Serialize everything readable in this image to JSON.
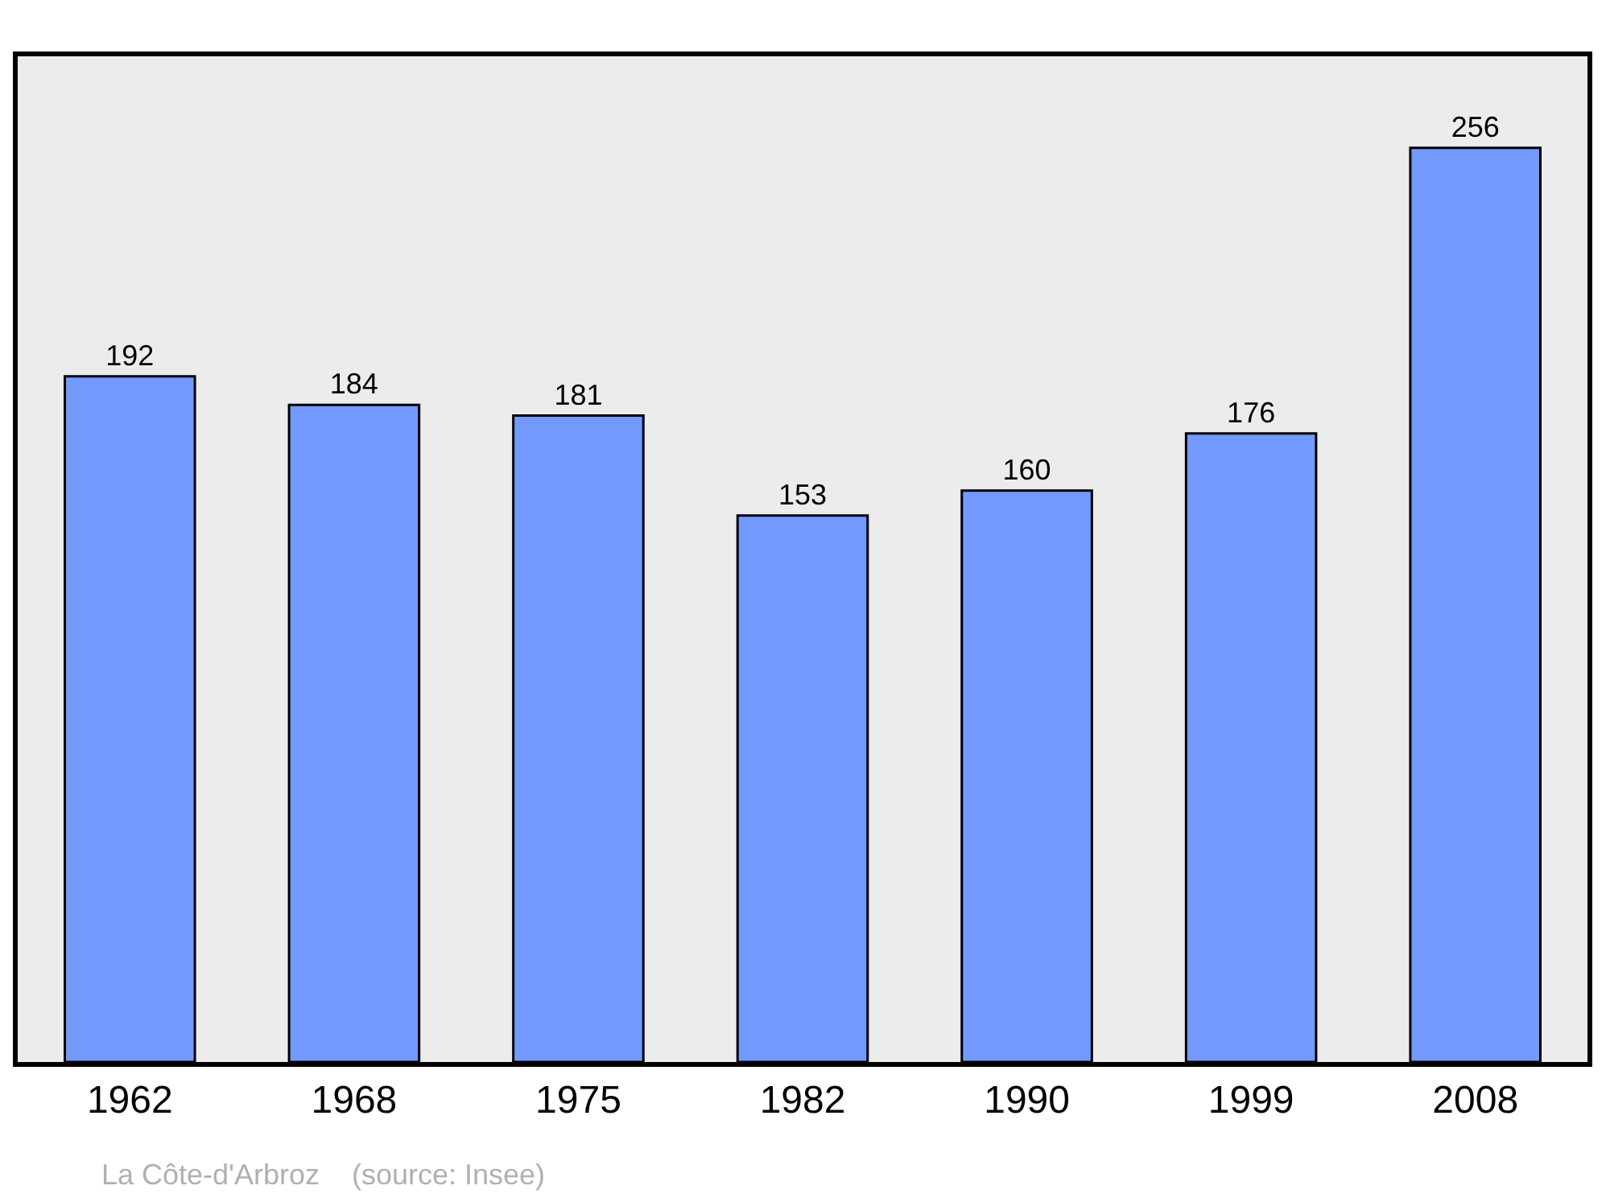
{
  "chart_data": {
    "type": "bar",
    "categories": [
      "1962",
      "1968",
      "1975",
      "1982",
      "1990",
      "1999",
      "2008"
    ],
    "values": [
      192,
      184,
      181,
      153,
      160,
      176,
      256
    ],
    "color": "#7399ff",
    "data_labels": true,
    "grid": false,
    "legend": false,
    "annotations": [
      "La Côte-d'Arbroz    (source: Insee)"
    ]
  }
}
